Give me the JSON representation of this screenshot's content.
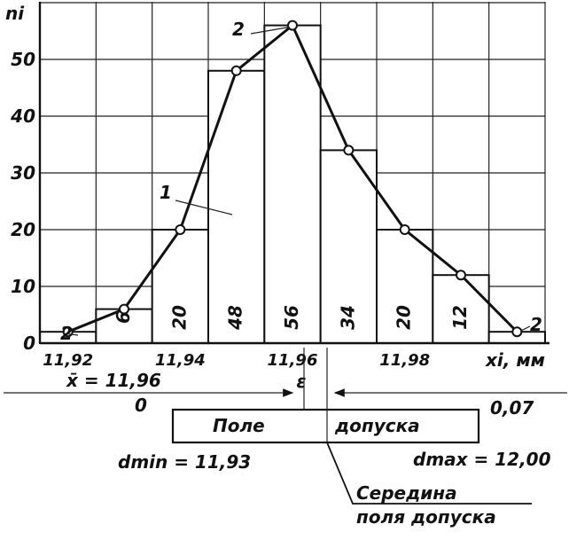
{
  "chart_data": {
    "type": "bar",
    "ylabel": "ni",
    "xlabel": "xi, мм",
    "y_ticks": [
      "0",
      "10",
      "20",
      "30",
      "40",
      "50"
    ],
    "x_tick_labels": [
      "11,92",
      "11,94",
      "11,96",
      "11,98"
    ],
    "ylim": [
      0,
      60
    ],
    "bins": [
      {
        "x": 11.92,
        "value": 2
      },
      {
        "x": 11.93,
        "value": 6
      },
      {
        "x": 11.94,
        "value": 20
      },
      {
        "x": 11.95,
        "value": 48
      },
      {
        "x": 11.96,
        "value": 56
      },
      {
        "x": 11.97,
        "value": 34
      },
      {
        "x": 11.98,
        "value": 20
      },
      {
        "x": 11.99,
        "value": 12
      },
      {
        "x": 12.0,
        "value": 2
      }
    ],
    "bar_labels": [
      "6",
      "20",
      "48",
      "56",
      "34",
      "20",
      "12"
    ],
    "curve_label": "1",
    "end_labels": [
      "2",
      "2",
      "2"
    ],
    "mean_label": "x̄ = 11,96",
    "epsilon_label": "ε",
    "tolerance": {
      "zero_label": "0",
      "width_label": "0,07",
      "field_left": "Поле",
      "field_right": "допуска",
      "dmin_label": "dmin = 11,93",
      "dmax_label": "dmax = 12,00",
      "middle_label_line1": "Середина",
      "middle_label_line2": "поля допуска"
    }
  }
}
